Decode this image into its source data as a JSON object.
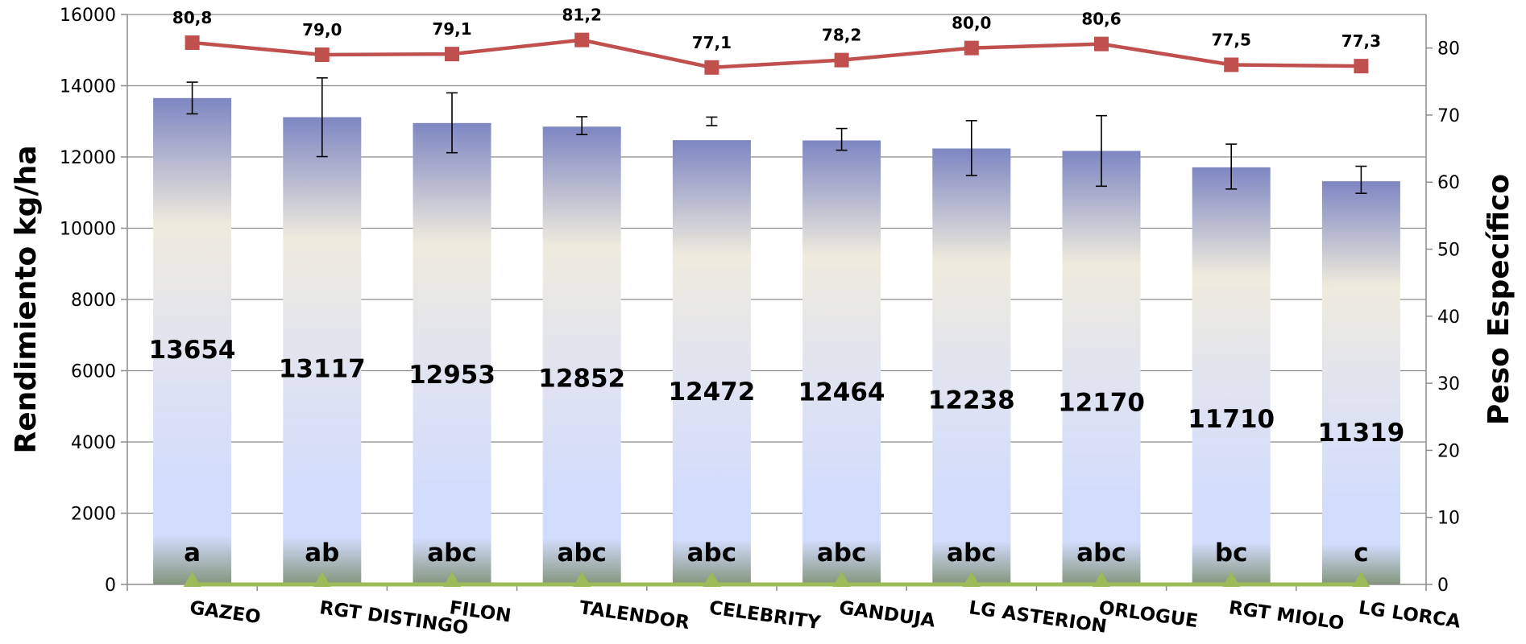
{
  "chart_data": {
    "type": "bar",
    "categories": [
      "GAZEO",
      "RGT DISTINGO",
      "FILON",
      "TALENDOR",
      "CELEBRITY",
      "GANDUJA",
      "LG ASTERION",
      "ORLOGUE",
      "RGT MIOLO",
      "LG LORCA"
    ],
    "title": "",
    "ylabel": "Rendimiento  kg/ha",
    "y2label": "Peso Específico",
    "ylim": [
      0,
      16000
    ],
    "y2lim": [
      0,
      85
    ],
    "yticks": [
      "0",
      "2000",
      "4000",
      "6000",
      "8000",
      "10000",
      "12000",
      "14000",
      "16000"
    ],
    "y2ticks": [
      "0",
      "10",
      "20",
      "30",
      "40",
      "50",
      "60",
      "70",
      "80"
    ],
    "grid": true,
    "series": [
      {
        "type": "bar",
        "axis": "left",
        "values": [
          13654,
          13117,
          12953,
          12852,
          12472,
          12464,
          12238,
          12170,
          11710,
          11319
        ],
        "value_labels": [
          "13654",
          "13117",
          "12953",
          "12852",
          "12472",
          "12464",
          "12238",
          "12170",
          "11710",
          "11319"
        ],
        "error_low": [
          13210,
          12010,
          12120,
          12630,
          12880,
          12190,
          11480,
          11180,
          11100,
          10980
        ],
        "error_high": [
          14100,
          14220,
          13800,
          13130,
          13120,
          12800,
          13020,
          13160,
          12360,
          11740
        ],
        "group_letters": [
          "a",
          "ab",
          "abc",
          "abc",
          "abc",
          "abc",
          "abc",
          "abc",
          "bc",
          "c"
        ],
        "colors": {
          "top": "#7e86c2",
          "cream": "#eeebdd",
          "mid": "#e2e4ee",
          "low": "#d2dcfc",
          "base": "#84957e"
        }
      },
      {
        "type": "line",
        "axis": "right",
        "values": [
          80.8,
          79.0,
          79.1,
          81.2,
          77.1,
          78.2,
          80.0,
          80.6,
          77.5,
          77.3
        ],
        "value_labels": [
          "80,8",
          "79,0",
          "79,1",
          "81,2",
          "77,1",
          "78,2",
          "80,0",
          "80,6",
          "77,5",
          "77,3"
        ],
        "color": "#c0504d",
        "marker": "square"
      },
      {
        "type": "line",
        "axis": "right",
        "values": [
          0,
          0,
          0,
          0,
          0,
          0,
          0,
          0,
          0,
          0
        ],
        "color": "#9bbb59",
        "marker": "triangle"
      }
    ]
  }
}
